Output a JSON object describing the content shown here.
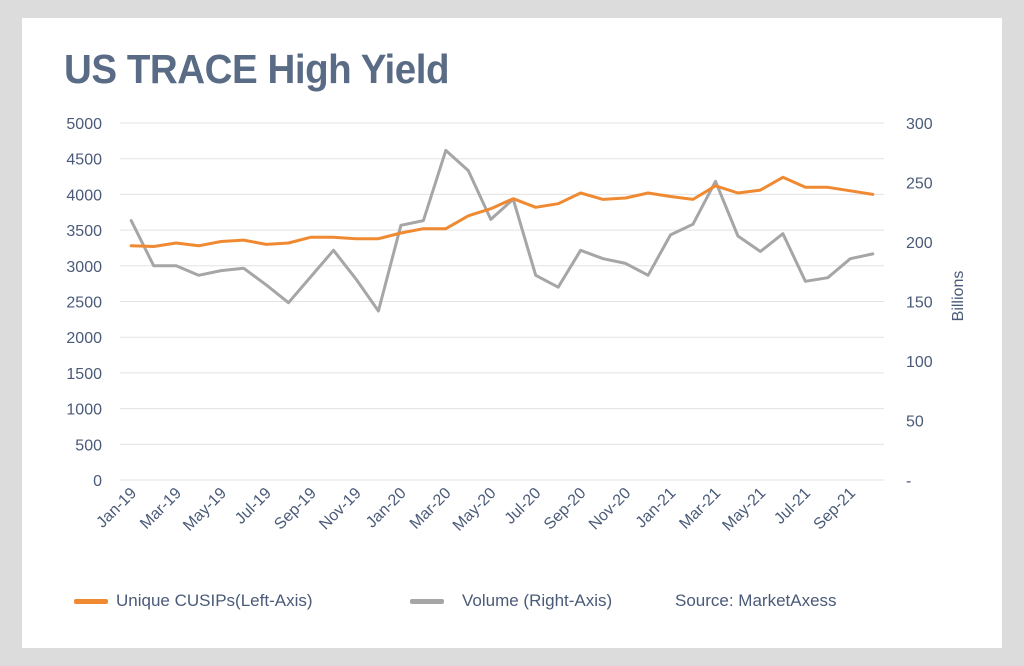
{
  "title": "US TRACE High Yield",
  "colors": {
    "cusips": "#f08a32",
    "volume": "#a6a6a6",
    "grid": "#e3e3e3",
    "text": "#4a5a78"
  },
  "legend": {
    "cusips": "Unique CUSIPs(Left-Axis)",
    "volume": "Volume (Right-Axis)",
    "source": "Source: MarketAxess"
  },
  "chart_data": {
    "type": "line",
    "title": "US TRACE High Yield",
    "x": [
      "Jan-19",
      "Feb-19",
      "Mar-19",
      "Apr-19",
      "May-19",
      "Jun-19",
      "Jul-19",
      "Aug-19",
      "Sep-19",
      "Oct-19",
      "Nov-19",
      "Dec-19",
      "Jan-20",
      "Feb-20",
      "Mar-20",
      "Apr-20",
      "May-20",
      "Jun-20",
      "Jul-20",
      "Aug-20",
      "Sep-20",
      "Oct-20",
      "Nov-20",
      "Dec-20",
      "Jan-21",
      "Feb-21",
      "Mar-21",
      "Apr-21",
      "May-21",
      "Jun-21",
      "Jul-21",
      "Aug-21",
      "Sep-21",
      "Oct-21"
    ],
    "x_tick_labels": [
      "Jan-19",
      "Mar-19",
      "May-19",
      "Jul-19",
      "Sep-19",
      "Nov-19",
      "Jan-20",
      "Mar-20",
      "May-20",
      "Jul-20",
      "Sep-20",
      "Nov-20",
      "Jan-21",
      "Mar-21",
      "May-21",
      "Jul-21",
      "Sep-21"
    ],
    "left_axis": {
      "min": 0,
      "max": 5000,
      "ticks": [
        "0",
        "500",
        "1000",
        "1500",
        "2000",
        "2500",
        "3000",
        "3500",
        "4000",
        "4500",
        "5000"
      ]
    },
    "right_axis": {
      "min": 0,
      "max": 300,
      "label": "Billions",
      "ticks": [
        "-",
        "50",
        "100",
        "150",
        "200",
        "250",
        "300"
      ]
    },
    "grid": true,
    "legend_position": "bottom",
    "series": [
      {
        "name": "Unique CUSIPs(Left-Axis)",
        "axis": "left",
        "values": [
          3280,
          3270,
          3320,
          3280,
          3340,
          3360,
          3300,
          3320,
          3400,
          3400,
          3380,
          3380,
          3460,
          3520,
          3520,
          3700,
          3800,
          3940,
          3820,
          3870,
          4020,
          3930,
          3950,
          4020,
          3970,
          3930,
          4120,
          4020,
          4060,
          4240,
          4100,
          4100,
          4050,
          4000
        ]
      },
      {
        "name": "Volume (Right-Axis)",
        "axis": "right",
        "values": [
          218,
          180,
          180,
          172,
          176,
          178,
          164,
          149,
          171,
          193,
          169,
          142,
          214,
          218,
          277,
          260,
          219,
          236,
          172,
          162,
          193,
          186,
          182,
          172,
          206,
          215,
          251,
          205,
          192,
          207,
          167,
          170,
          186,
          190
        ]
      }
    ],
    "annotation": "Source: MarketAxess"
  }
}
